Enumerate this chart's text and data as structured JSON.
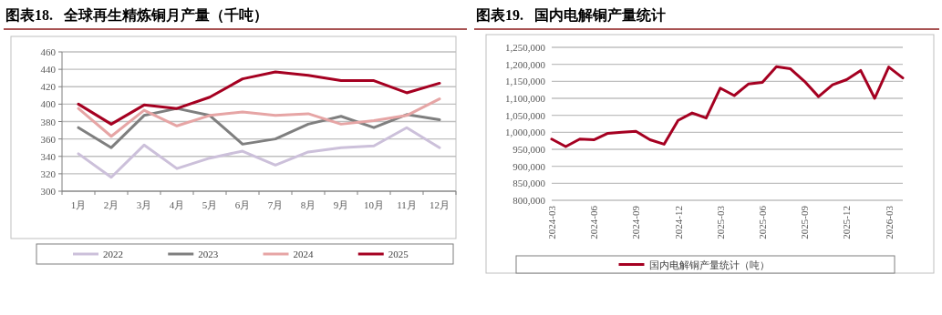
{
  "chart_data": [
    {
      "type": "line",
      "title": "图表18.   全球再生精炼铜月产量（千吨）",
      "categories": [
        "1月",
        "2月",
        "3月",
        "4月",
        "5月",
        "6月",
        "7月",
        "8月",
        "9月",
        "10月",
        "11月",
        "12月"
      ],
      "series": [
        {
          "name": "2022",
          "color": "#ccc0da",
          "values": [
            343,
            316,
            353,
            326,
            338,
            346,
            330,
            345,
            350,
            352,
            373,
            350
          ]
        },
        {
          "name": "2023",
          "color": "#7f7f7f",
          "values": [
            373,
            350,
            387,
            395,
            387,
            354,
            360,
            377,
            386,
            373,
            388,
            382
          ]
        },
        {
          "name": "2024",
          "color": "#e6a5a5",
          "values": [
            395,
            363,
            393,
            375,
            387,
            391,
            387,
            389,
            377,
            381,
            387,
            406
          ]
        },
        {
          "name": "2025",
          "color": "#a50021",
          "values": [
            400,
            377,
            399,
            395,
            408,
            429,
            437,
            433,
            427,
            427,
            413,
            424
          ]
        }
      ],
      "ylim": [
        300,
        460
      ],
      "yticks": [
        300,
        320,
        340,
        360,
        380,
        400,
        420,
        440,
        460
      ],
      "grid": "y",
      "legend": "bottom",
      "marker": "none",
      "line_style": "solid"
    },
    {
      "type": "line",
      "title": "图表19.   国内电解铜产量统计",
      "categories": [
        "2024-03",
        null,
        null,
        "2024-06",
        null,
        null,
        "2024-09",
        null,
        null,
        "2024-12",
        null,
        null,
        "2025-03",
        null,
        null,
        "2025-06",
        null,
        null,
        "2025-09",
        null,
        null,
        "2025-12",
        null,
        null,
        "2026-03",
        null
      ],
      "series": [
        {
          "name": "国内电解铜产量统计（吨）",
          "color": "#a50021",
          "values": [
            980000,
            958000,
            980000,
            978000,
            997000,
            1000000,
            1003000,
            978000,
            965000,
            1035000,
            1057000,
            1042000,
            1130000,
            1108000,
            1142000,
            1147000,
            1193000,
            1187000,
            1150000,
            1105000,
            1140000,
            1155000,
            1182000,
            1100000,
            1192000,
            1160000
          ]
        }
      ],
      "ylim": [
        800000,
        1250000
      ],
      "yticks": [
        {
          "value": 800000,
          "label": "800,000"
        },
        {
          "value": 850000,
          "label": "850,000"
        },
        {
          "value": 900000,
          "label": "900,000"
        },
        {
          "value": 950000,
          "label": "950,000"
        },
        {
          "value": 1000000,
          "label": "1,000,000"
        },
        {
          "value": 1050000,
          "label": "1,050,000"
        },
        {
          "value": 1100000,
          "label": "1,100,000"
        },
        {
          "value": 1150000,
          "label": "1,150,000"
        },
        {
          "value": 1200000,
          "label": "1,200,000"
        },
        {
          "value": 1250000,
          "label": "1,250,000"
        }
      ],
      "grid": "y",
      "legend": "bottom",
      "marker": "none",
      "line_style": "solid"
    }
  ]
}
